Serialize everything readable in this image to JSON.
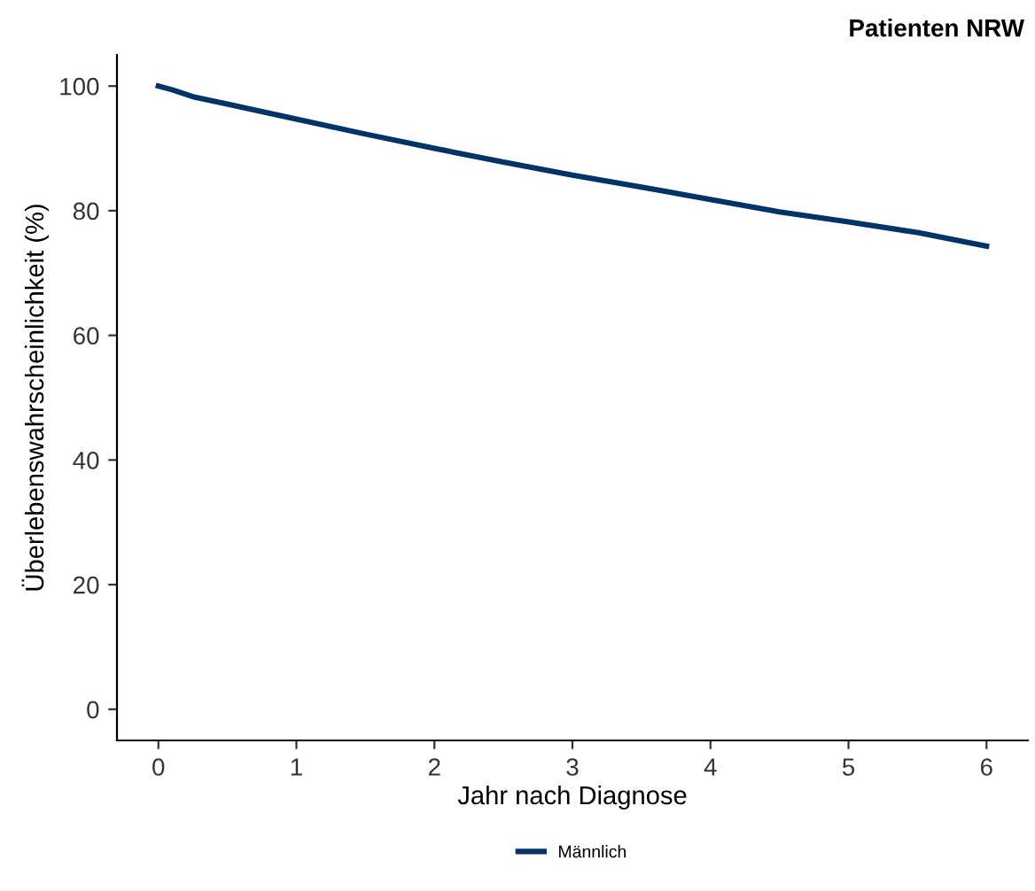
{
  "chart_data": {
    "type": "line",
    "title": "Patienten NRW",
    "xlabel": "Jahr nach Diagnose",
    "ylabel": "Überlebenswahrscheinlichkeit (%)",
    "x": [
      0,
      0.1,
      0.25,
      0.5,
      0.75,
      1,
      1.5,
      2,
      2.5,
      3,
      3.5,
      4,
      4.5,
      5,
      5.5,
      6
    ],
    "series": [
      {
        "name": "Männlich",
        "color": "#003366",
        "values": [
          100,
          99.4,
          98.3,
          97.1,
          95.9,
          94.7,
          92.3,
          90,
          87.8,
          85.7,
          83.8,
          81.8,
          79.8,
          78.2,
          76.5,
          74.3
        ]
      }
    ],
    "xlim": [
      -0.3,
      6.3
    ],
    "ylim": [
      -5,
      105
    ],
    "xticks": [
      0,
      1,
      2,
      3,
      4,
      5,
      6
    ],
    "yticks": [
      0,
      20,
      40,
      60,
      80,
      100
    ],
    "grid": false,
    "legend": "bottom",
    "marker": "none",
    "line_style": "solid"
  }
}
